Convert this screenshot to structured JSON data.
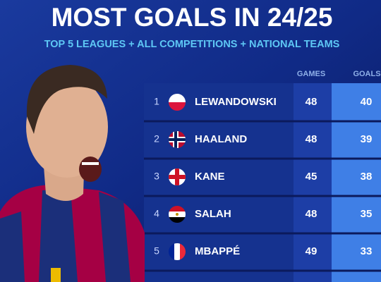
{
  "header": {
    "title": "MOST GOALS IN 24/25",
    "subtitle": "TOP 5 LEAGUES + ALL COMPETITIONS + NATIONAL TEAMS"
  },
  "table": {
    "columns": [
      "GAMES",
      "GOALS"
    ],
    "rows": [
      [
        1,
        "LEWANDOWSKI",
        48,
        40
      ],
      [
        2,
        "HAALAND",
        48,
        39
      ],
      [
        3,
        "KANE",
        45,
        38
      ],
      [
        4,
        "SALAH",
        48,
        35
      ],
      [
        5,
        "MBAPPÉ",
        49,
        33
      ]
    ]
  }
}
